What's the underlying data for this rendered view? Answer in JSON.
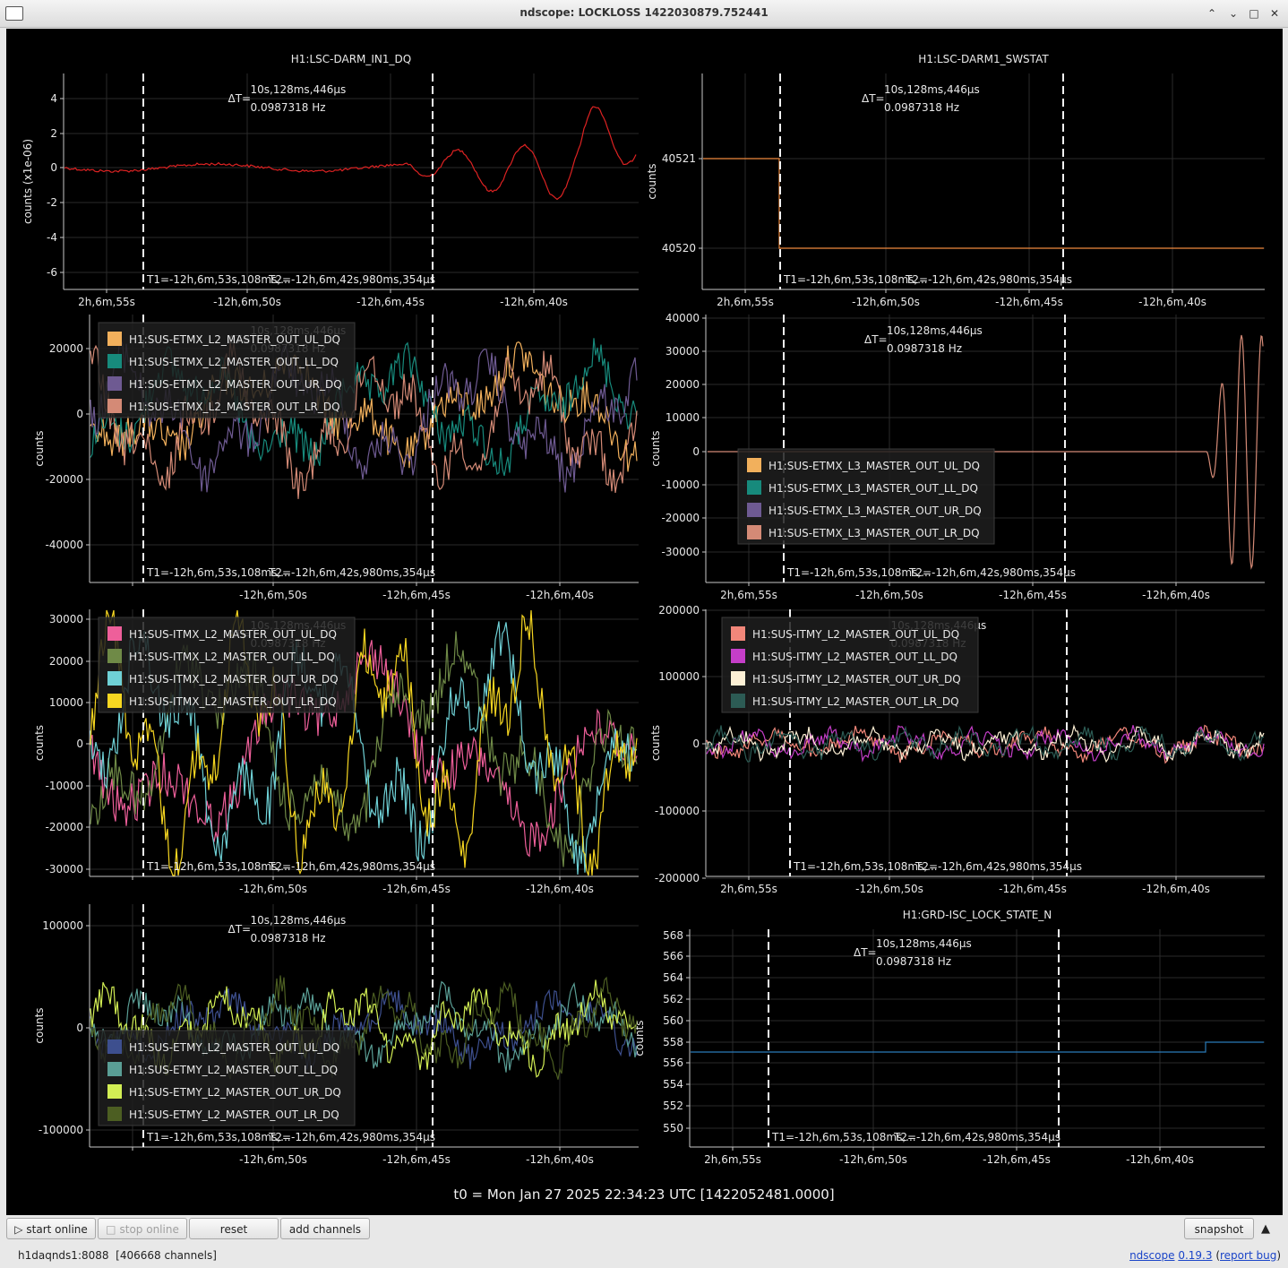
{
  "window": {
    "title": "ndscope: LOCKLOSS 1422030879.752441"
  },
  "colors": {
    "darm": "#dd2222",
    "swstat": "#f08a3e",
    "grd": "#2a7ab8",
    "etmx": [
      "#f2b05c",
      "#178a7c",
      "#6e5a92",
      "#d48a76"
    ],
    "itmx": [
      "#ee5f9a",
      "#6f8a47",
      "#6fd1d6",
      "#f7d721"
    ],
    "itmy": [
      "#f2877a",
      "#c53ec8",
      "#fdf0d5",
      "#2c5b54"
    ],
    "etmy": [
      "#3d4f8e",
      "#5a9e95",
      "#d2ee54",
      "#4c5e22"
    ]
  },
  "cursors": {
    "dt_label": "ΔT=",
    "dt_value": "10s,128ms,446µs",
    "freq": "0.0987318 Hz",
    "t1": "T1=-12h,6m,53s,108ms,...",
    "t2": "T2=-12h,6m,42s,980ms,354µs"
  },
  "time_ticks": [
    "2h,6m,55s",
    "-12h,6m,50s",
    "-12h,6m,45s",
    "-12h,6m,40s"
  ],
  "plots": [
    {
      "title": "H1:LSC-DARM_IN1_DQ",
      "ylabel": "counts (x1e-06)",
      "yticks": [
        "4",
        "2",
        "0",
        "-2",
        "-4",
        "-6"
      ],
      "legend": []
    },
    {
      "title": "H1:LSC-DARM1_SWSTAT",
      "ylabel": "counts",
      "yticks": [
        "40521",
        "40520"
      ],
      "legend": []
    },
    {
      "title": "",
      "ylabel": "counts",
      "yticks": [
        "20000",
        "0",
        "-20000",
        "-40000"
      ],
      "legend": [
        "H1:SUS-ETMX_L2_MASTER_OUT_UL_DQ",
        "H1:SUS-ETMX_L2_MASTER_OUT_LL_DQ",
        "H1:SUS-ETMX_L2_MASTER_OUT_UR_DQ",
        "H1:SUS-ETMX_L2_MASTER_OUT_LR_DQ"
      ]
    },
    {
      "title": "",
      "ylabel": "counts",
      "yticks": [
        "40000",
        "30000",
        "20000",
        "10000",
        "0",
        "-10000",
        "-20000",
        "-30000"
      ],
      "legend": [
        "H1:SUS-ETMX_L3_MASTER_OUT_UL_DQ",
        "H1:SUS-ETMX_L3_MASTER_OUT_LL_DQ",
        "H1:SUS-ETMX_L3_MASTER_OUT_UR_DQ",
        "H1:SUS-ETMX_L3_MASTER_OUT_LR_DQ"
      ]
    },
    {
      "title": "",
      "ylabel": "counts",
      "yticks": [
        "30000",
        "20000",
        "10000",
        "0",
        "-10000",
        "-20000",
        "-30000"
      ],
      "legend": [
        "H1:SUS-ITMX_L2_MASTER_OUT_UL_DQ",
        "H1:SUS-ITMX_L2_MASTER_OUT_LL_DQ",
        "H1:SUS-ITMX_L2_MASTER_OUT_UR_DQ",
        "H1:SUS-ITMX_L2_MASTER_OUT_LR_DQ"
      ]
    },
    {
      "title": "",
      "ylabel": "counts",
      "yticks": [
        "200000",
        "100000",
        "0",
        "-100000",
        "-200000"
      ],
      "legend": [
        "H1:SUS-ITMY_L2_MASTER_OUT_UL_DQ",
        "H1:SUS-ITMY_L2_MASTER_OUT_LL_DQ",
        "H1:SUS-ITMY_L2_MASTER_OUT_UR_DQ",
        "H1:SUS-ITMY_L2_MASTER_OUT_LR_DQ"
      ]
    },
    {
      "title": "",
      "ylabel": "counts",
      "yticks": [
        "100000",
        "0",
        "-100000"
      ],
      "legend": [
        "H1:SUS-ETMY_L2_MASTER_OUT_UL_DQ",
        "H1:SUS-ETMY_L2_MASTER_OUT_LL_DQ",
        "H1:SUS-ETMY_L2_MASTER_OUT_UR_DQ",
        "H1:SUS-ETMY_L2_MASTER_OUT_LR_DQ"
      ]
    },
    {
      "title": "H1:GRD-ISC_LOCK_STATE_N",
      "ylabel": "counts",
      "yticks": [
        "568",
        "566",
        "564",
        "562",
        "560",
        "558",
        "556",
        "554",
        "552",
        "550"
      ],
      "legend": []
    }
  ],
  "t0": "t0 = Mon Jan 27 2025 22:34:23 UTC [1422052481.0000]",
  "toolbar": {
    "start_online": "start online",
    "stop_online": "stop online",
    "reset": "reset",
    "add_channels": "add channels",
    "snapshot": "snapshot"
  },
  "status": {
    "server": "h1daqnds1:8088",
    "channels": "[406668 channels]",
    "app": "ndscope",
    "version": "0.19.3",
    "report_bug": "report bug"
  }
}
